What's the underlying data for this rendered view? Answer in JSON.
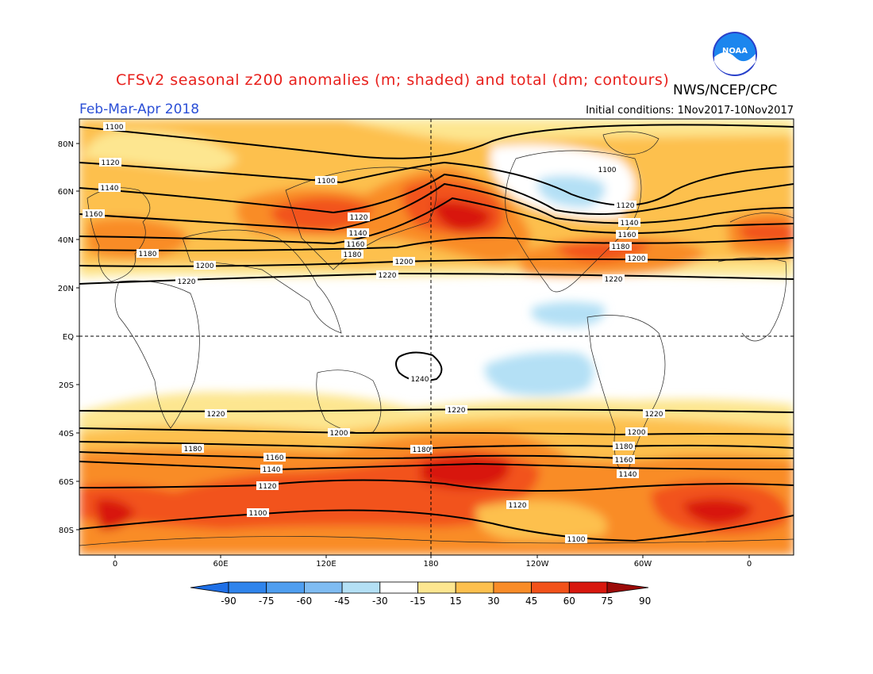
{
  "title": "CFSv2 seasonal z200 anomalies (m; shaded) and total (dm; contours)",
  "period": "Feb-Mar-Apr 2018",
  "agency": "NWS/NCEP/CPC",
  "logo_text": "NOAA",
  "initial_conditions": "Initial conditions: 1Nov2017-10Nov2017",
  "lat_ticks": [
    "80N",
    "60N",
    "40N",
    "20N",
    "EQ",
    "20S",
    "40S",
    "60S",
    "80S"
  ],
  "lon_ticks": [
    "0",
    "60E",
    "120E",
    "180",
    "120W",
    "60W",
    "0"
  ],
  "colorbar": {
    "labels": [
      "-90",
      "-75",
      "-60",
      "-45",
      "-30",
      "-15",
      "15",
      "30",
      "45",
      "60",
      "75",
      "90"
    ],
    "colors": [
      "#1e6fe6",
      "#2f84ec",
      "#4f9ef0",
      "#7fbcf2",
      "#b4e0f5",
      "#ffffff",
      "#fde690",
      "#fdc04e",
      "#f98c28",
      "#f2521a",
      "#d8180e",
      "#9b0a08"
    ]
  },
  "contour_labels": [
    "1100",
    "1120",
    "1140",
    "1160",
    "1180",
    "1200",
    "1220",
    "1240"
  ],
  "colors": {
    "title": "#e8211d",
    "period": "#2b4fd6",
    "neg_light": "#b4e0f5",
    "pos_light": "#fde690",
    "pos_mid": "#fdc04e",
    "pos_orange": "#f98c28",
    "pos_red": "#f2521a",
    "pos_dark": "#d8180e"
  }
}
